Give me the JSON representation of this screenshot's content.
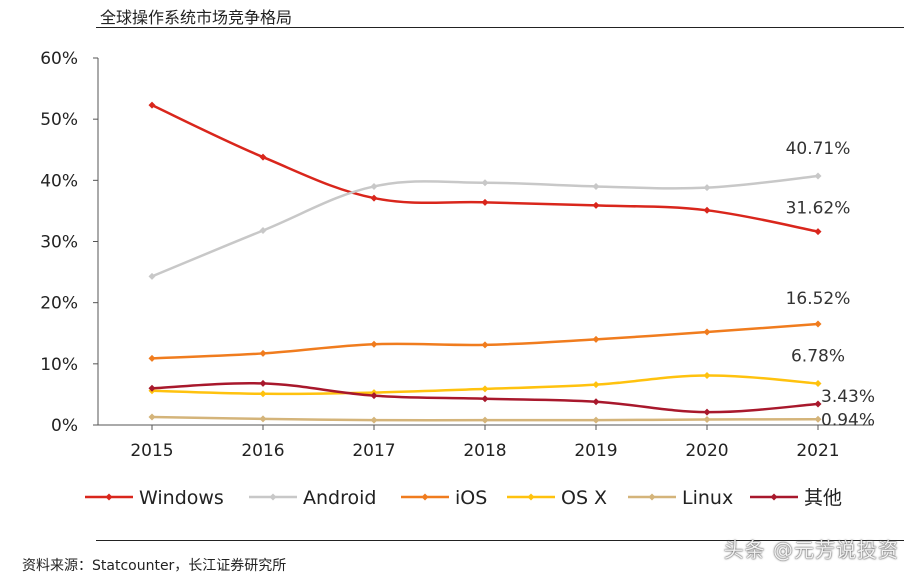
{
  "title": "全球操作系统市场竞争格局",
  "source": "资料来源：Statcounter，长江证券研究所",
  "watermark": "头条 @元芳说投资",
  "chart_data": {
    "type": "line",
    "categories": [
      "2015",
      "2016",
      "2017",
      "2018",
      "2019",
      "2020",
      "2021"
    ],
    "ylim": [
      0,
      60
    ],
    "yticks": [
      0,
      10,
      20,
      30,
      40,
      50,
      60
    ],
    "ytick_labels": [
      "0%",
      "10%",
      "20%",
      "30%",
      "40%",
      "50%",
      "60%"
    ],
    "legend_position": "bottom",
    "series": [
      {
        "name": "Windows",
        "color": "#d9261c",
        "values": [
          52.3,
          43.8,
          37.1,
          36.4,
          35.9,
          35.1,
          31.62
        ],
        "end_label": "31.62%"
      },
      {
        "name": "Android",
        "color": "#c8c8c8",
        "values": [
          24.3,
          31.8,
          39.0,
          39.6,
          39.0,
          38.8,
          40.71
        ],
        "end_label": "40.71%"
      },
      {
        "name": "iOS",
        "color": "#f07c1e",
        "values": [
          10.9,
          11.7,
          13.2,
          13.1,
          14.0,
          15.2,
          16.52
        ],
        "end_label": "16.52%"
      },
      {
        "name": "OS X",
        "color": "#ffc20e",
        "values": [
          5.6,
          5.1,
          5.3,
          5.9,
          6.6,
          8.1,
          6.78
        ],
        "end_label": "6.78%"
      },
      {
        "name": "Linux",
        "color": "#d4b47a",
        "values": [
          1.3,
          1.0,
          0.8,
          0.8,
          0.8,
          0.9,
          0.94
        ],
        "end_label": "0.94%"
      },
      {
        "name": "其他",
        "color": "#a8182c",
        "values": [
          6.0,
          6.8,
          4.8,
          4.3,
          3.8,
          2.1,
          3.43
        ],
        "end_label": "3.43%"
      }
    ]
  }
}
